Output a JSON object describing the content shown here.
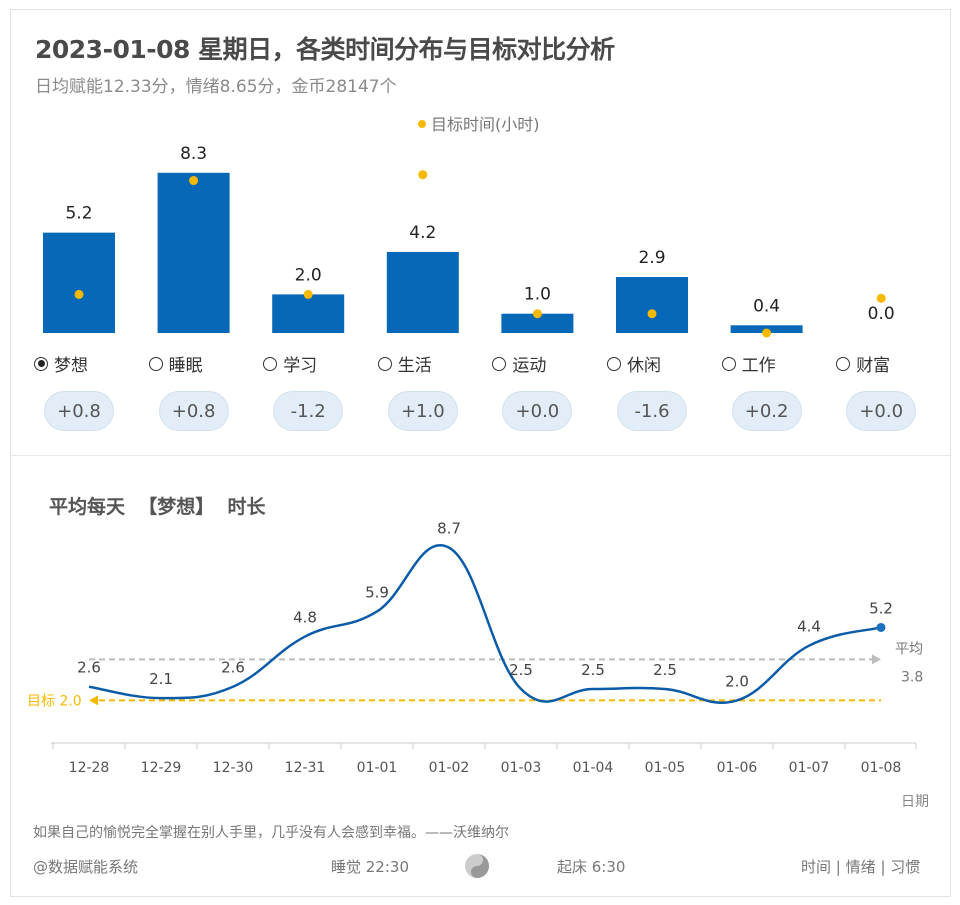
{
  "header": {
    "title": "2023-01-08 星期日，各类时间分布与目标对比分析",
    "subtitle": "日均赋能12.33分，情绪8.65分，金币28147个"
  },
  "chart_data": [
    {
      "type": "bar",
      "legend": "目标时间(小时)",
      "legend_placement": "top",
      "categories": [
        "梦想",
        "睡眠",
        "学习",
        "生活",
        "运动",
        "休闲",
        "工作",
        "财富"
      ],
      "values": [
        5.2,
        8.3,
        2.0,
        4.2,
        1.0,
        2.9,
        0.4,
        0.0
      ],
      "value_labels": [
        "5.2",
        "8.3",
        "2.0",
        "4.2",
        "1.0",
        "2.9",
        "0.4",
        "0.0"
      ],
      "target_values": [
        2.0,
        7.9,
        2.0,
        8.2,
        1.0,
        1.0,
        0.0,
        1.8
      ],
      "differences": [
        "+0.8",
        "+0.8",
        "-1.2",
        "+1.0",
        "+0.0",
        "-1.6",
        "+0.2",
        "+0.0"
      ],
      "selected": "梦想",
      "colors": {
        "bar": "#0868b8",
        "target": "#f7b900"
      }
    },
    {
      "type": "line",
      "title": "平均每天  【梦想】  时长",
      "xlabel": "日期",
      "categories": [
        "12-28",
        "12-29",
        "12-30",
        "12-31",
        "01-01",
        "01-02",
        "01-03",
        "01-04",
        "01-05",
        "01-06",
        "01-07",
        "01-08"
      ],
      "values": [
        2.6,
        2.1,
        2.6,
        4.8,
        5.9,
        8.7,
        2.5,
        2.5,
        2.5,
        2.0,
        4.4,
        5.2
      ],
      "value_labels": [
        "2.6",
        "2.1",
        "2.6",
        "4.8",
        "5.9",
        "8.7",
        "2.5",
        "2.5",
        "2.5",
        "2.0",
        "4.4",
        "5.2"
      ],
      "average": {
        "label": "平均",
        "value": 3.8,
        "value_label": "3.8"
      },
      "target": {
        "label": "目标 2.0",
        "value": 2.0
      },
      "colors": {
        "line": "#0a5ca8",
        "average": "#bdbdbd",
        "target": "#f7b900"
      }
    }
  ],
  "footer": {
    "quote": "如果自己的愉悦完全掌握在别人手里，几乎没有人会感到幸福。——沃维纳尔",
    "brand": "@数据赋能系统",
    "sleep": "睡觉 22:30",
    "wake": "起床 6:30",
    "links": [
      "时间",
      "情绪",
      "习惯"
    ],
    "sep": "|"
  }
}
